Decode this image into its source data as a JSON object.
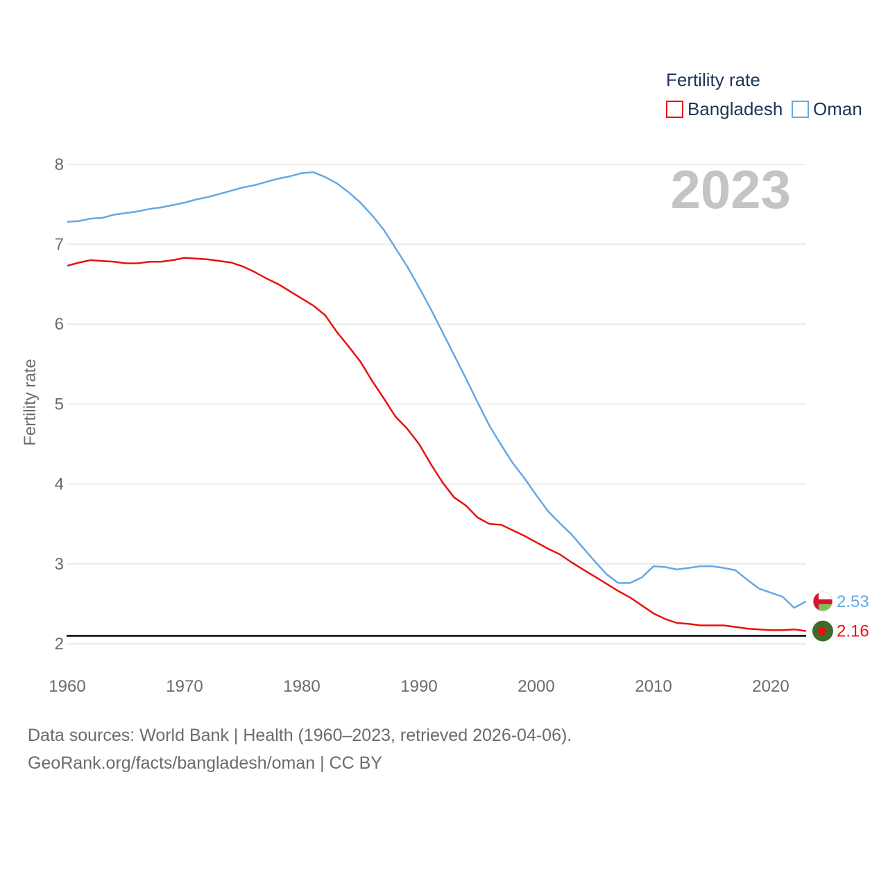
{
  "chart_data": {
    "type": "line",
    "legend_title": "Fertility rate",
    "ylabel": "Fertility rate",
    "xlabel": "",
    "year_label": "2023",
    "xlim": [
      1960,
      2023
    ],
    "ylim": [
      1.8,
      8.3
    ],
    "x_ticks": [
      1960,
      1970,
      1980,
      1990,
      2000,
      2010,
      2020
    ],
    "y_ticks": [
      2,
      3,
      4,
      5,
      6,
      7,
      8
    ],
    "reference_line": 2.1,
    "legend_position": "top-right",
    "x": [
      1960,
      1961,
      1962,
      1963,
      1964,
      1965,
      1966,
      1967,
      1968,
      1969,
      1970,
      1971,
      1972,
      1973,
      1974,
      1975,
      1976,
      1977,
      1978,
      1979,
      1980,
      1981,
      1982,
      1983,
      1984,
      1985,
      1986,
      1987,
      1988,
      1989,
      1990,
      1991,
      1992,
      1993,
      1994,
      1995,
      1996,
      1997,
      1998,
      1999,
      2000,
      2001,
      2002,
      2003,
      2004,
      2005,
      2006,
      2007,
      2008,
      2009,
      2010,
      2011,
      2012,
      2013,
      2014,
      2015,
      2016,
      2017,
      2018,
      2019,
      2020,
      2021,
      2022,
      2023
    ],
    "series": [
      {
        "name": "Bangladesh",
        "color": "#e8120c",
        "end_value_label": "2.16",
        "values": [
          6.73,
          6.77,
          6.8,
          6.79,
          6.78,
          6.76,
          6.76,
          6.78,
          6.78,
          6.8,
          6.83,
          6.82,
          6.81,
          6.79,
          6.77,
          6.72,
          6.65,
          6.57,
          6.5,
          6.41,
          6.32,
          6.23,
          6.11,
          5.9,
          5.72,
          5.53,
          5.29,
          5.07,
          4.84,
          4.69,
          4.5,
          4.25,
          4.02,
          3.83,
          3.73,
          3.58,
          3.5,
          3.49,
          3.42,
          3.35,
          3.27,
          3.19,
          3.12,
          3.02,
          2.93,
          2.84,
          2.75,
          2.66,
          2.58,
          2.48,
          2.38,
          2.31,
          2.26,
          2.25,
          2.23,
          2.23,
          2.23,
          2.21,
          2.19,
          2.18,
          2.17,
          2.17,
          2.18,
          2.16
        ]
      },
      {
        "name": "Oman",
        "color": "#64a8e6",
        "end_value_label": "2.53",
        "values": [
          7.28,
          7.29,
          7.32,
          7.33,
          7.37,
          7.39,
          7.41,
          7.44,
          7.46,
          7.49,
          7.52,
          7.56,
          7.59,
          7.63,
          7.67,
          7.71,
          7.74,
          7.78,
          7.82,
          7.85,
          7.89,
          7.9,
          7.84,
          7.76,
          7.65,
          7.52,
          7.36,
          7.18,
          6.95,
          6.72,
          6.46,
          6.19,
          5.9,
          5.61,
          5.32,
          5.02,
          4.73,
          4.49,
          4.26,
          4.07,
          3.86,
          3.66,
          3.51,
          3.37,
          3.2,
          3.03,
          2.87,
          2.76,
          2.76,
          2.83,
          2.97,
          2.96,
          2.93,
          2.95,
          2.97,
          2.97,
          2.95,
          2.92,
          2.8,
          2.69,
          2.64,
          2.59,
          2.45,
          2.53
        ]
      }
    ]
  },
  "footer": {
    "line1": "Data sources: World Bank | Health (1960–2023, retrieved 2026-04-06).",
    "line2": "GeoRank.org/facts/bangladesh/oman | CC BY"
  },
  "colors": {
    "grid": "#e6e6e6",
    "reference": "#000000",
    "bangladesh_flag_green": "#3d6b2d",
    "bangladesh_flag_red": "#e8120c",
    "oman_flag_red": "#d9132a",
    "oman_flag_green": "#7fbf5a"
  }
}
